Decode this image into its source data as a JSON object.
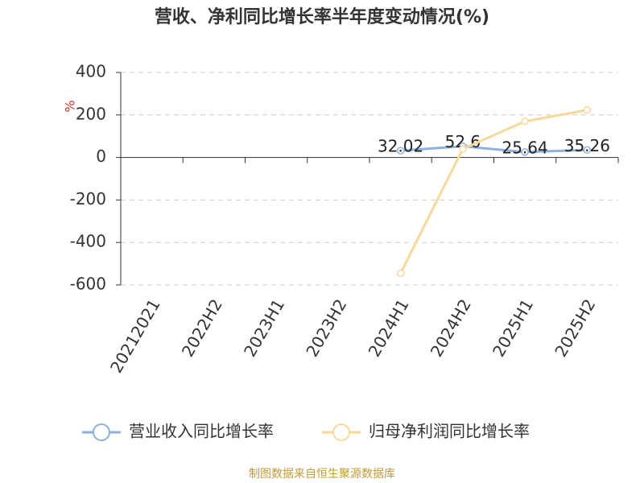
{
  "chart_data": {
    "type": "line",
    "title": "营收、净利同比增长率半年度变动情况(%)",
    "y_axis_label": "%",
    "categories": [
      "20212021",
      "2022H2",
      "2023H1",
      "2023H2",
      "2024H1",
      "2024H2",
      "2025H1",
      "2025H2"
    ],
    "series": [
      {
        "name": "营业收入同比增长率",
        "color": "#8eb0dc",
        "values": [
          null,
          null,
          null,
          null,
          32.02,
          52.6,
          25.64,
          35.26
        ],
        "show_labels": true
      },
      {
        "name": "归母净利润同比增长率",
        "color": "#fad89a",
        "values": [
          null,
          null,
          null,
          null,
          -545,
          40,
          170,
          223
        ],
        "show_labels": false
      }
    ],
    "ylim": [
      -600,
      400
    ],
    "yticks": [
      -600,
      -400,
      -200,
      0,
      200,
      400
    ],
    "grid": true,
    "source": "制图数据来自恒生聚源数据库"
  }
}
